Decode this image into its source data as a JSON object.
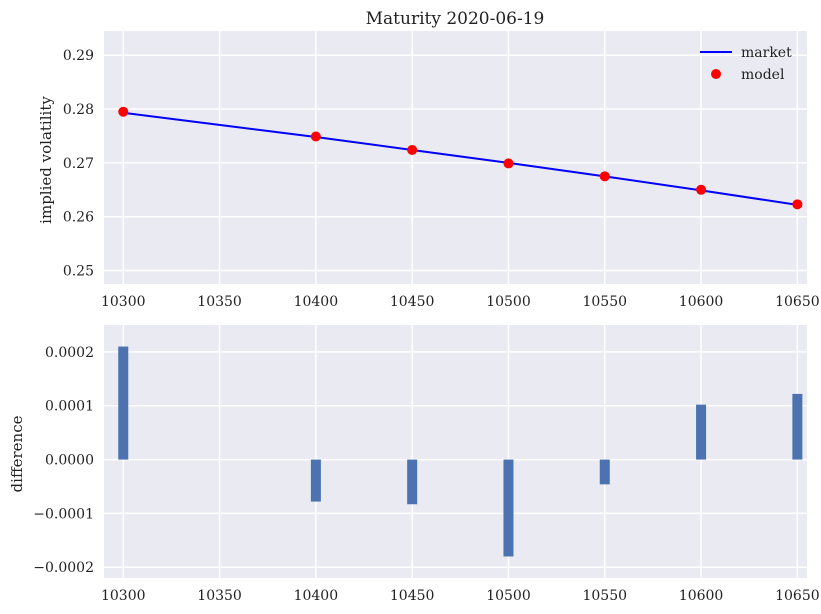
{
  "chart_data": [
    {
      "type": "line",
      "title": "Maturity 2020-06-19",
      "xlabel": "",
      "ylabel": "implied volatility",
      "xlim": [
        10290,
        10655
      ],
      "ylim": [
        0.2475,
        0.2945
      ],
      "x_ticks": [
        10300,
        10350,
        10400,
        10450,
        10500,
        10550,
        10600,
        10650
      ],
      "x_tick_labels": [
        "10300",
        "10350",
        "10400",
        "10450",
        "10500",
        "10550",
        "10600",
        "10650"
      ],
      "y_ticks": [
        0.25,
        0.26,
        0.27,
        0.28,
        0.29
      ],
      "y_tick_labels": [
        "0.25",
        "0.26",
        "0.27",
        "0.28",
        "0.29"
      ],
      "grid": true,
      "legend_position": "top-right",
      "series": [
        {
          "name": "market",
          "type": "line",
          "color": "#0000ff",
          "x": [
            10300,
            10400,
            10450,
            10500,
            10550,
            10600,
            10650
          ],
          "y": [
            0.2793,
            0.2748,
            0.2724,
            0.27,
            0.2675,
            0.2649,
            0.2622
          ]
        },
        {
          "name": "model",
          "type": "scatter",
          "color": "#ff0000",
          "x": [
            10300,
            10400,
            10450,
            10500,
            10550,
            10600,
            10650
          ],
          "y": [
            0.2795,
            0.2749,
            0.2724,
            0.2699,
            0.2675,
            0.265,
            0.2623
          ]
        }
      ]
    },
    {
      "type": "bar",
      "title": "",
      "xlabel": "",
      "ylabel": "difference",
      "xlim": [
        10290,
        10655
      ],
      "ylim": [
        -0.00022,
        0.00025
      ],
      "x_ticks": [
        10300,
        10350,
        10400,
        10450,
        10500,
        10550,
        10600,
        10650
      ],
      "x_tick_labels": [
        "10300",
        "10350",
        "10400",
        "10450",
        "10500",
        "10550",
        "10600",
        "10650"
      ],
      "y_ticks": [
        -0.0002,
        -0.0001,
        0.0,
        0.0001,
        0.0002
      ],
      "y_tick_labels": [
        "−0.0002",
        "−0.0001",
        "0.0000",
        "0.0001",
        "0.0002"
      ],
      "grid": true,
      "bar_color": "#4c72b0",
      "x": [
        10300,
        10400,
        10450,
        10500,
        10550,
        10600,
        10650
      ],
      "values": [
        0.00021,
        -7.8e-05,
        -8.3e-05,
        -0.00018,
        -4.6e-05,
        0.000102,
        0.000122
      ]
    }
  ]
}
